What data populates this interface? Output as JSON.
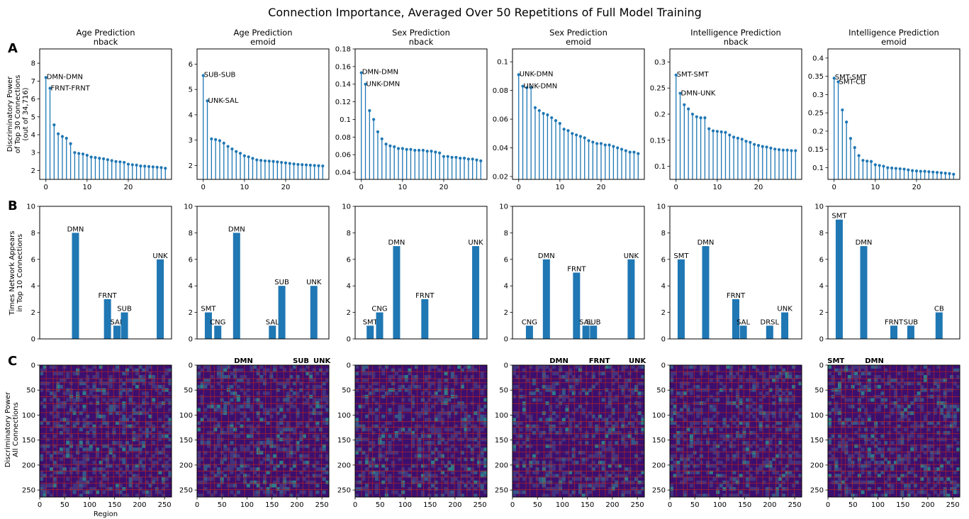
{
  "suptitle": "Connection Importance, Averaged Over 50 Repetitions of Full Model Training",
  "row_letters": [
    "A",
    "B",
    "C"
  ],
  "row_ylabels": {
    "A": [
      "Discriminatory Power",
      "of Top 30 Connections",
      "(out of 34,716)"
    ],
    "B": [
      "Times Network Appears",
      "in Top 10 Connections"
    ],
    "C": [
      "Discriminatory Power",
      "All Connections"
    ]
  },
  "heatmap_xlabel": "Region",
  "colors": {
    "stem": "#1f77b4",
    "bar": "#1f77b4",
    "grid_line": "#b22222",
    "heat_base": "#3b0f70"
  },
  "chart_data": [
    {
      "type": "stem",
      "row": "A",
      "title": [
        "Age Prediction",
        "nback"
      ],
      "x": [
        0,
        1,
        2,
        3,
        4,
        5,
        6,
        7,
        8,
        9,
        10,
        11,
        12,
        13,
        14,
        15,
        16,
        17,
        18,
        19,
        20,
        21,
        22,
        23,
        24,
        25,
        26,
        27,
        28,
        29
      ],
      "values": [
        7.2,
        6.6,
        4.55,
        4.05,
        3.9,
        3.8,
        3.5,
        3.0,
        2.95,
        2.92,
        2.85,
        2.75,
        2.72,
        2.68,
        2.65,
        2.6,
        2.55,
        2.5,
        2.48,
        2.45,
        2.35,
        2.32,
        2.3,
        2.25,
        2.24,
        2.22,
        2.2,
        2.18,
        2.16,
        2.12
      ],
      "annotations": [
        "DMN-DMN",
        "FRNT-FRNT"
      ],
      "xlim": [
        -1.5,
        30.5
      ],
      "ylim": [
        1.5,
        8.8
      ],
      "xticks": [
        0,
        10,
        20,
        30
      ],
      "yticks": [
        2,
        3,
        4,
        5,
        6,
        7,
        8
      ]
    },
    {
      "type": "stem",
      "row": "A",
      "title": [
        "Age Prediction",
        "emoid"
      ],
      "x": [
        0,
        1,
        2,
        3,
        4,
        5,
        6,
        7,
        8,
        9,
        10,
        11,
        12,
        13,
        14,
        15,
        16,
        17,
        18,
        19,
        20,
        21,
        22,
        23,
        24,
        25,
        26,
        27,
        28,
        29
      ],
      "values": [
        5.55,
        4.55,
        3.05,
        3.02,
        2.98,
        2.88,
        2.75,
        2.65,
        2.55,
        2.48,
        2.38,
        2.34,
        2.28,
        2.22,
        2.2,
        2.18,
        2.17,
        2.16,
        2.14,
        2.12,
        2.1,
        2.08,
        2.06,
        2.04,
        2.03,
        2.02,
        2.01,
        2.0,
        1.99,
        1.98
      ],
      "annotations": [
        "SUB-SUB",
        "UNK-SAL"
      ],
      "xlim": [
        -1.5,
        30.5
      ],
      "ylim": [
        1.45,
        6.6
      ],
      "xticks": [
        0,
        10,
        20,
        30
      ],
      "yticks": [
        2,
        3,
        4,
        5,
        6
      ]
    },
    {
      "type": "stem",
      "row": "A",
      "title": [
        "Sex Prediction",
        "nback"
      ],
      "x": [
        0,
        1,
        2,
        3,
        4,
        5,
        6,
        7,
        8,
        9,
        10,
        11,
        12,
        13,
        14,
        15,
        16,
        17,
        18,
        19,
        20,
        21,
        22,
        23,
        24,
        25,
        26,
        27,
        28,
        29
      ],
      "values": [
        0.153,
        0.14,
        0.11,
        0.1,
        0.086,
        0.078,
        0.072,
        0.07,
        0.069,
        0.067,
        0.067,
        0.066,
        0.066,
        0.065,
        0.065,
        0.065,
        0.064,
        0.064,
        0.063,
        0.062,
        0.058,
        0.058,
        0.057,
        0.057,
        0.056,
        0.056,
        0.055,
        0.055,
        0.054,
        0.053
      ],
      "annotations": [
        "DMN-DMN",
        "UNK-DMN"
      ],
      "xlim": [
        -1.5,
        30.5
      ],
      "ylim": [
        0.032,
        0.18
      ],
      "xticks": [
        0,
        10,
        20,
        30
      ],
      "yticks": [
        0.04,
        0.06,
        0.08,
        0.1,
        0.12,
        0.14,
        0.16,
        0.18
      ]
    },
    {
      "type": "stem",
      "row": "A",
      "title": [
        "Sex Prediction",
        "emoid"
      ],
      "x": [
        0,
        1,
        2,
        3,
        4,
        5,
        6,
        7,
        8,
        9,
        10,
        11,
        12,
        13,
        14,
        15,
        16,
        17,
        18,
        19,
        20,
        21,
        22,
        23,
        24,
        25,
        26,
        27,
        28,
        29
      ],
      "values": [
        0.091,
        0.083,
        0.082,
        0.082,
        0.068,
        0.066,
        0.064,
        0.063,
        0.061,
        0.059,
        0.057,
        0.053,
        0.052,
        0.05,
        0.049,
        0.048,
        0.047,
        0.045,
        0.044,
        0.043,
        0.043,
        0.042,
        0.042,
        0.041,
        0.04,
        0.039,
        0.038,
        0.037,
        0.037,
        0.036
      ],
      "annotations": [
        "UNK-DMN",
        "UNK-DMN"
      ],
      "xlim": [
        -1.5,
        30.5
      ],
      "ylim": [
        0.018,
        0.109
      ],
      "xticks": [
        0,
        10,
        20,
        30
      ],
      "yticks": [
        0.02,
        0.04,
        0.06,
        0.08,
        0.1
      ]
    },
    {
      "type": "stem",
      "row": "A",
      "title": [
        "Intelligence Prediction",
        "nback"
      ],
      "x": [
        0,
        1,
        2,
        3,
        4,
        5,
        6,
        7,
        8,
        9,
        10,
        11,
        12,
        13,
        14,
        15,
        16,
        17,
        18,
        19,
        20,
        21,
        22,
        23,
        24,
        25,
        26,
        27,
        28,
        29
      ],
      "values": [
        0.275,
        0.24,
        0.218,
        0.21,
        0.2,
        0.195,
        0.193,
        0.193,
        0.172,
        0.168,
        0.167,
        0.166,
        0.165,
        0.16,
        0.156,
        0.154,
        0.152,
        0.148,
        0.146,
        0.142,
        0.14,
        0.138,
        0.137,
        0.135,
        0.133,
        0.132,
        0.131,
        0.131,
        0.13,
        0.13
      ],
      "annotations": [
        "SMT-SMT",
        "DMN-UNK"
      ],
      "xlim": [
        -1.5,
        30.5
      ],
      "ylim": [
        0.075,
        0.325
      ],
      "xticks": [
        0,
        10,
        20,
        30
      ],
      "yticks": [
        0.1,
        0.15,
        0.2,
        0.25,
        0.3
      ]
    },
    {
      "type": "stem",
      "row": "A",
      "title": [
        "Intelligence Prediction",
        "emoid"
      ],
      "x": [
        0,
        1,
        2,
        3,
        4,
        5,
        6,
        7,
        8,
        9,
        10,
        11,
        12,
        13,
        14,
        15,
        16,
        17,
        18,
        19,
        20,
        21,
        22,
        23,
        24,
        25,
        26,
        27,
        28,
        29
      ],
      "values": [
        0.345,
        0.335,
        0.258,
        0.225,
        0.18,
        0.155,
        0.133,
        0.12,
        0.118,
        0.117,
        0.108,
        0.106,
        0.104,
        0.1,
        0.099,
        0.098,
        0.097,
        0.096,
        0.094,
        0.092,
        0.091,
        0.09,
        0.09,
        0.089,
        0.088,
        0.087,
        0.086,
        0.085,
        0.084,
        0.082
      ],
      "annotations": [
        "SMT-SMT",
        "SMT-CB"
      ],
      "xlim": [
        -1.5,
        30.5
      ],
      "ylim": [
        0.068,
        0.425
      ],
      "xticks": [
        0,
        10,
        20,
        30
      ],
      "yticks": [
        0.1,
        0.15,
        0.2,
        0.25,
        0.3,
        0.35,
        0.4
      ]
    },
    {
      "type": "bar",
      "row": "B",
      "ylim": [
        0,
        10
      ],
      "yticks": [
        0,
        2,
        4,
        6,
        8,
        10
      ],
      "bars": [
        {
          "label": "DMN",
          "x": 1.9,
          "value": 8
        },
        {
          "label": "FRNT",
          "x": 3.6,
          "value": 3
        },
        {
          "label": "SAL",
          "x": 4.1,
          "value": 1
        },
        {
          "label": "SUB",
          "x": 4.5,
          "value": 2
        },
        {
          "label": "UNK",
          "x": 6.4,
          "value": 6
        }
      ]
    },
    {
      "type": "bar",
      "row": "B",
      "ylim": [
        0,
        10
      ],
      "yticks": [
        0,
        2,
        4,
        6,
        8,
        10
      ],
      "bars": [
        {
          "label": "SMT",
          "x": 0.6,
          "value": 2
        },
        {
          "label": "CNG",
          "x": 1.1,
          "value": 1
        },
        {
          "label": "DMN",
          "x": 2.1,
          "value": 8
        },
        {
          "label": "SAL",
          "x": 4.0,
          "value": 1
        },
        {
          "label": "SUB",
          "x": 4.5,
          "value": 4
        },
        {
          "label": "UNK",
          "x": 6.2,
          "value": 4
        }
      ]
    },
    {
      "type": "bar",
      "row": "B",
      "ylim": [
        0,
        10
      ],
      "yticks": [
        0,
        2,
        4,
        6,
        8,
        10
      ],
      "bars": [
        {
          "label": "SMT",
          "x": 0.8,
          "value": 1
        },
        {
          "label": "CNG",
          "x": 1.3,
          "value": 2
        },
        {
          "label": "DMN",
          "x": 2.2,
          "value": 7
        },
        {
          "label": "FRNT",
          "x": 3.7,
          "value": 3
        },
        {
          "label": "UNK",
          "x": 6.4,
          "value": 7
        }
      ]
    },
    {
      "type": "bar",
      "row": "B",
      "ylim": [
        0,
        10
      ],
      "yticks": [
        0,
        2,
        4,
        6,
        8,
        10
      ],
      "bars": [
        {
          "label": "CNG",
          "x": 0.9,
          "value": 1
        },
        {
          "label": "DMN",
          "x": 1.8,
          "value": 6
        },
        {
          "label": "FRNT",
          "x": 3.4,
          "value": 5
        },
        {
          "label": "SAL",
          "x": 3.9,
          "value": 1
        },
        {
          "label": "SUB",
          "x": 4.3,
          "value": 1
        },
        {
          "label": "UNK",
          "x": 6.3,
          "value": 6
        }
      ]
    },
    {
      "type": "bar",
      "row": "B",
      "ylim": [
        0,
        10
      ],
      "yticks": [
        0,
        2,
        4,
        6,
        8,
        10
      ],
      "bars": [
        {
          "label": "SMT",
          "x": 0.6,
          "value": 6
        },
        {
          "label": "DMN",
          "x": 1.9,
          "value": 7
        },
        {
          "label": "FRNT",
          "x": 3.5,
          "value": 3
        },
        {
          "label": "SAL",
          "x": 3.9,
          "value": 1
        },
        {
          "label": "DRSL",
          "x": 5.3,
          "value": 1
        },
        {
          "label": "UNK",
          "x": 6.1,
          "value": 2
        }
      ]
    },
    {
      "type": "bar",
      "row": "B",
      "ylim": [
        0,
        10
      ],
      "yticks": [
        0,
        2,
        4,
        6,
        8,
        10
      ],
      "bars": [
        {
          "label": "SMT",
          "x": 0.6,
          "value": 9
        },
        {
          "label": "DMN",
          "x": 1.9,
          "value": 7
        },
        {
          "label": "FRNT",
          "x": 3.5,
          "value": 1
        },
        {
          "label": "SUB",
          "x": 4.4,
          "value": 1
        },
        {
          "label": "CB",
          "x": 5.9,
          "value": 2
        }
      ]
    },
    {
      "type": "heatmap",
      "row": "C",
      "network_labels": [],
      "xlim": [
        0,
        264
      ],
      "ylim": [
        264,
        0
      ],
      "xticks": [
        0,
        50,
        100,
        150,
        200,
        250
      ],
      "yticks": [
        0,
        50,
        100,
        150,
        200,
        250
      ]
    },
    {
      "type": "heatmap",
      "row": "C",
      "network_labels": [
        {
          "label": "DMN",
          "region": 93
        },
        {
          "label": "SUB",
          "region": 208
        },
        {
          "label": "UNK",
          "region": 250
        }
      ],
      "xlim": [
        0,
        264
      ],
      "ylim": [
        264,
        0
      ],
      "xticks": [
        0,
        50,
        100,
        150,
        200,
        250
      ],
      "yticks": [
        0,
        50,
        100,
        150,
        200,
        250
      ]
    },
    {
      "type": "heatmap",
      "row": "C",
      "network_labels": [],
      "xlim": [
        0,
        264
      ],
      "ylim": [
        264,
        0
      ],
      "xticks": [
        0,
        50,
        100,
        150,
        200,
        250
      ],
      "yticks": [
        0,
        50,
        100,
        150,
        200,
        250
      ]
    },
    {
      "type": "heatmap",
      "row": "C",
      "network_labels": [
        {
          "label": "DMN",
          "region": 93
        },
        {
          "label": "FRNT",
          "region": 174
        },
        {
          "label": "UNK",
          "region": 250
        }
      ],
      "xlim": [
        0,
        264
      ],
      "ylim": [
        264,
        0
      ],
      "xticks": [
        0,
        50,
        100,
        150,
        200,
        250
      ],
      "yticks": [
        0,
        50,
        100,
        150,
        200,
        250
      ]
    },
    {
      "type": "heatmap",
      "row": "C",
      "network_labels": [],
      "xlim": [
        0,
        264
      ],
      "ylim": [
        264,
        0
      ],
      "xticks": [
        0,
        50,
        100,
        150,
        200,
        250
      ],
      "yticks": [
        0,
        50,
        100,
        150,
        200,
        250
      ]
    },
    {
      "type": "heatmap",
      "row": "C",
      "network_labels": [
        {
          "label": "SMT",
          "region": 16
        },
        {
          "label": "DMN",
          "region": 93
        }
      ],
      "xlim": [
        0,
        264
      ],
      "ylim": [
        264,
        0
      ],
      "xticks": [
        0,
        50,
        100,
        150,
        200,
        250
      ],
      "yticks": [
        0,
        50,
        100,
        150,
        200,
        250
      ]
    }
  ]
}
